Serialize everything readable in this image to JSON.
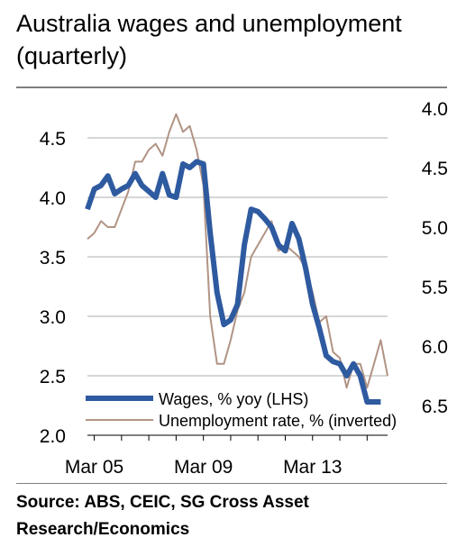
{
  "title": "Australia wages and unemployment (quarterly)",
  "source": "Source: ABS, CEIC, SG Cross Asset Research/Economics",
  "colors": {
    "wages": "#2e5aa0",
    "unemployment": "#b19485",
    "grid": "#c8c8c8",
    "axis": "#000000",
    "rule": "#7f7f7f"
  },
  "chart_data": {
    "type": "line",
    "title": "Australia wages and unemployment (quarterly)",
    "x_tick_labels": [
      "Mar 05",
      "Mar 09",
      "Mar 13"
    ],
    "x_tick_quarters": [
      "2005Q1",
      "2009Q1",
      "2013Q1"
    ],
    "x_range": [
      "2004Q4",
      "2015Q4"
    ],
    "y_left": {
      "range": [
        2.0,
        4.75
      ],
      "ticks": [
        "2.0",
        "2.5",
        "3.0",
        "3.5",
        "4.0",
        "4.5"
      ],
      "tick_values": [
        2.0,
        2.5,
        3.0,
        3.5,
        4.0,
        4.5
      ]
    },
    "y_right": {
      "inverted": true,
      "range": [
        6.75,
        4.0
      ],
      "ticks": [
        "4.0",
        "4.5",
        "5.0",
        "5.5",
        "6.0",
        "6.5"
      ],
      "tick_values": [
        4.0,
        4.5,
        5.0,
        5.5,
        6.0,
        6.5
      ]
    },
    "grid": "horizontal",
    "legend_position": "bottom",
    "series": [
      {
        "name": "Wages, % yoy (LHS)",
        "axis": "left",
        "color": "#2e5aa0",
        "x": [
          "2004Q4",
          "2005Q1",
          "2005Q2",
          "2005Q3",
          "2005Q4",
          "2006Q1",
          "2006Q2",
          "2006Q3",
          "2006Q4",
          "2007Q1",
          "2007Q2",
          "2007Q3",
          "2007Q4",
          "2008Q1",
          "2008Q2",
          "2008Q3",
          "2008Q4",
          "2009Q1",
          "2009Q2",
          "2009Q3",
          "2009Q4",
          "2010Q1",
          "2010Q2",
          "2010Q3",
          "2010Q4",
          "2011Q1",
          "2011Q2",
          "2011Q3",
          "2011Q4",
          "2012Q1",
          "2012Q2",
          "2012Q3",
          "2012Q4",
          "2013Q1",
          "2013Q2",
          "2013Q3",
          "2013Q4",
          "2014Q1",
          "2014Q2",
          "2014Q3",
          "2014Q4",
          "2015Q1",
          "2015Q2",
          "2015Q3"
        ],
        "values": [
          3.9,
          4.07,
          4.1,
          4.18,
          4.03,
          4.07,
          4.1,
          4.2,
          4.1,
          4.05,
          4.0,
          4.2,
          4.02,
          4.0,
          4.28,
          4.25,
          4.3,
          4.28,
          3.7,
          3.2,
          2.93,
          2.97,
          3.1,
          3.6,
          3.9,
          3.88,
          3.82,
          3.75,
          3.6,
          3.55,
          3.78,
          3.65,
          3.4,
          3.1,
          2.9,
          2.67,
          2.62,
          2.6,
          2.5,
          2.6,
          2.5,
          2.28,
          2.28,
          2.28
        ]
      },
      {
        "name": "Unemployment rate, % (inverted)",
        "axis": "right",
        "color": "#b19485",
        "x": [
          "2004Q4",
          "2005Q1",
          "2005Q2",
          "2005Q3",
          "2005Q4",
          "2006Q1",
          "2006Q2",
          "2006Q3",
          "2006Q4",
          "2007Q1",
          "2007Q2",
          "2007Q3",
          "2007Q4",
          "2008Q1",
          "2008Q2",
          "2008Q3",
          "2008Q4",
          "2009Q1",
          "2009Q2",
          "2009Q3",
          "2009Q4",
          "2010Q1",
          "2010Q2",
          "2010Q3",
          "2010Q4",
          "2011Q1",
          "2011Q2",
          "2011Q3",
          "2011Q4",
          "2012Q1",
          "2012Q2",
          "2012Q3",
          "2012Q4",
          "2013Q1",
          "2013Q2",
          "2013Q3",
          "2013Q4",
          "2014Q1",
          "2014Q2",
          "2014Q3",
          "2014Q4",
          "2015Q1",
          "2015Q2",
          "2015Q3",
          "2015Q4"
        ],
        "values": [
          5.1,
          5.05,
          4.95,
          5.0,
          5.0,
          4.85,
          4.7,
          4.45,
          4.45,
          4.35,
          4.3,
          4.4,
          4.2,
          4.05,
          4.2,
          4.15,
          4.35,
          4.65,
          5.75,
          6.15,
          6.15,
          5.95,
          5.7,
          5.55,
          5.25,
          5.15,
          5.05,
          4.95,
          5.2,
          5.15,
          5.2,
          5.25,
          5.35,
          5.55,
          5.8,
          5.75,
          6.05,
          6.1,
          6.35,
          6.15,
          6.15,
          6.35,
          6.15,
          5.95,
          6.25
        ]
      }
    ]
  }
}
